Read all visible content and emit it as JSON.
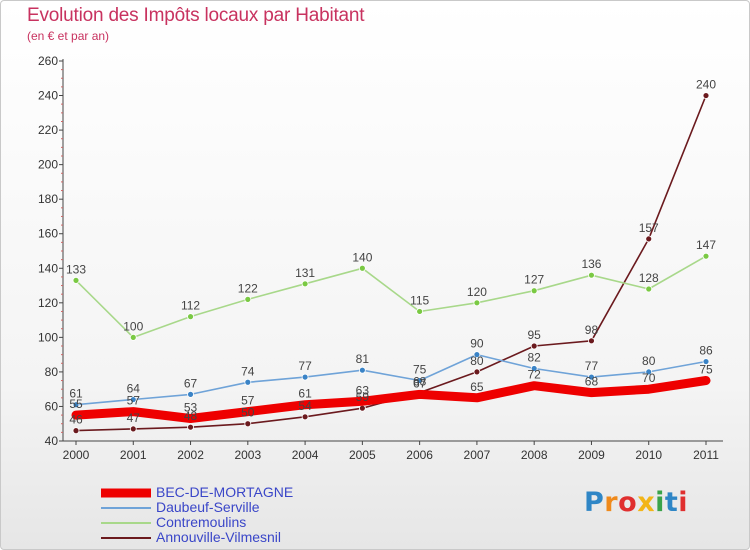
{
  "title": "Evolution des Impôts locaux par Habitant",
  "subtitle": "(en € et par an)",
  "logo_text": "Proxiti",
  "logo_colors": [
    "#2f86c6",
    "#ef8a1c",
    "#e02f2f",
    "#f2b518",
    "#3aa34a",
    "#2f86c6",
    "#e02f2f"
  ],
  "chart_data": {
    "type": "line",
    "x": [
      "2000",
      "2001",
      "2002",
      "2003",
      "2004",
      "2005",
      "2006",
      "2007",
      "2008",
      "2009",
      "2010",
      "2011"
    ],
    "ylim": [
      40,
      260
    ],
    "yticks": [
      40,
      60,
      80,
      100,
      120,
      140,
      160,
      180,
      200,
      220,
      240,
      260
    ],
    "grid": false,
    "legend_position": "bottom-left",
    "series": [
      {
        "name": "Annouville-Vilmesnil",
        "color": "#6b1a1e",
        "marker": "#6b1a1e",
        "values": [
          46,
          47,
          48,
          50,
          54,
          59,
          68,
          80,
          95,
          98,
          157,
          240
        ]
      },
      {
        "name": "Contremoulins",
        "color": "#a8d88a",
        "marker": "#7ac943",
        "values": [
          133,
          100,
          112,
          122,
          131,
          140,
          115,
          120,
          127,
          136,
          128,
          147
        ]
      },
      {
        "name": "Daubeuf-Serville",
        "color": "#6fa3d8",
        "marker": "#3a83c6",
        "values": [
          61,
          64,
          67,
          74,
          77,
          81,
          75,
          90,
          82,
          77,
          80,
          86
        ]
      },
      {
        "name": "BEC-DE-MORTAGNE",
        "color": "#ee0000",
        "marker": "#ee0000",
        "thick": true,
        "values": [
          55,
          57,
          53,
          57,
          61,
          63,
          67,
          65,
          72,
          68,
          70,
          75
        ]
      }
    ],
    "legend_order": [
      "BEC-DE-MORTAGNE",
      "Daubeuf-Serville",
      "Contremoulins",
      "Annouville-Vilmesnil"
    ]
  }
}
